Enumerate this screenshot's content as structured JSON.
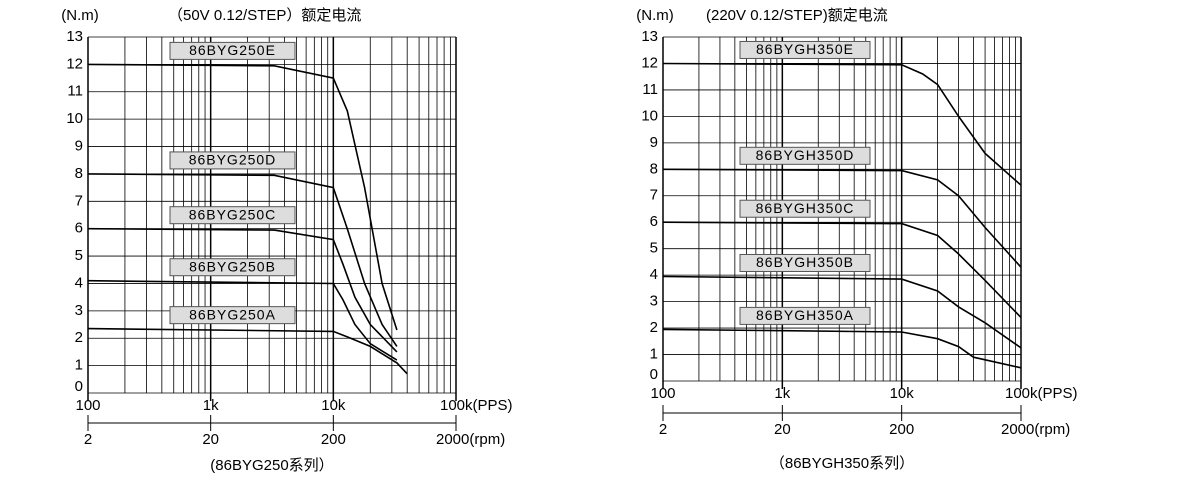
{
  "chart_data": [
    {
      "type": "line",
      "ylabel": "(N.m)",
      "title": "（50V 0.12/STEP）额定电流",
      "caption": "(86BYG250系列）",
      "xscale": "log",
      "grid": true,
      "xlim": [
        100,
        100000
      ],
      "ylim": [
        0,
        13
      ],
      "xticks": [
        100,
        {
          "value": 1000,
          "label": "1k"
        },
        {
          "value": 10000,
          "label": "10k"
        },
        {
          "value": 100000,
          "label": "100k(PPS)"
        }
      ],
      "yticks": [
        0,
        1,
        2,
        3,
        4,
        5,
        6,
        7,
        8,
        9,
        10,
        11,
        12,
        13
      ],
      "x2lim": [
        2,
        2000
      ],
      "x2ticks": [
        2,
        20,
        200,
        {
          "value": 2000,
          "label": "2000(rpm)"
        }
      ],
      "series": [
        {
          "name": "86BYG250E",
          "color": "#000000",
          "x": [
            100,
            3300,
            10000,
            13000,
            18000,
            25000,
            33000
          ],
          "values": [
            12,
            11.95,
            11.5,
            10.3,
            7.5,
            4,
            2.3
          ]
        },
        {
          "name": "86BYG250D",
          "color": "#000000",
          "x": [
            100,
            3300,
            10000,
            13000,
            18000,
            25000,
            33000
          ],
          "values": [
            8,
            7.95,
            7.5,
            6,
            4,
            2.5,
            1.7
          ]
        },
        {
          "name": "86BYG250C",
          "color": "#000000",
          "x": [
            100,
            3300,
            10000,
            12000,
            15000,
            20000,
            33000
          ],
          "values": [
            6,
            5.95,
            5.6,
            4.7,
            3.5,
            2.5,
            1.5
          ]
        },
        {
          "name": "86BYG250B",
          "color": "#000000",
          "x": [
            100,
            10000,
            12000,
            15000,
            20000,
            33000
          ],
          "values": [
            4.1,
            4,
            3.4,
            2.5,
            1.8,
            1.2
          ]
        },
        {
          "name": "86BYG250A",
          "color": "#000000",
          "x": [
            100,
            10000,
            13000,
            20000,
            33000,
            40000
          ],
          "values": [
            2.35,
            2.25,
            2.05,
            1.7,
            1.1,
            0.7
          ]
        }
      ]
    },
    {
      "type": "line",
      "ylabel": "(N.m)",
      "title": "(220V  0.12/STEP)额定电流",
      "caption": "（86BYGH350系列）",
      "xscale": "log",
      "grid": true,
      "xlim": [
        100,
        100000
      ],
      "ylim": [
        0,
        13
      ],
      "xticks": [
        100,
        {
          "value": 1000,
          "label": "1k"
        },
        {
          "value": 10000,
          "label": "10k"
        },
        {
          "value": 100000,
          "label": "100k(PPS)"
        }
      ],
      "yticks": [
        0,
        1,
        2,
        3,
        4,
        5,
        6,
        7,
        8,
        9,
        10,
        11,
        12,
        13
      ],
      "x2lim": [
        2,
        2000
      ],
      "x2ticks": [
        2,
        20,
        200,
        {
          "value": 2000,
          "label": "2000(rpm)"
        }
      ],
      "series": [
        {
          "name": "86BYGH350E",
          "color": "#000000",
          "x": [
            100,
            10000,
            15000,
            20000,
            30000,
            50000,
            100000
          ],
          "values": [
            12,
            11.95,
            11.6,
            11.2,
            10,
            8.6,
            7.4
          ]
        },
        {
          "name": "86BYGH350D",
          "color": "#000000",
          "x": [
            100,
            10000,
            20000,
            30000,
            50000,
            100000
          ],
          "values": [
            8,
            7.95,
            7.6,
            7,
            5.8,
            4.3
          ]
        },
        {
          "name": "86BYGH350C",
          "color": "#000000",
          "x": [
            100,
            10000,
            20000,
            30000,
            50000,
            100000
          ],
          "values": [
            6,
            5.95,
            5.5,
            4.8,
            3.8,
            2.4
          ]
        },
        {
          "name": "86BYGH350B",
          "color": "#000000",
          "x": [
            100,
            10000,
            20000,
            30000,
            50000,
            100000
          ],
          "values": [
            3.95,
            3.85,
            3.4,
            2.8,
            2.2,
            1.25
          ]
        },
        {
          "name": "86BYGH350A",
          "color": "#000000",
          "x": [
            100,
            10000,
            20000,
            30000,
            40000,
            100000
          ],
          "values": [
            1.95,
            1.85,
            1.6,
            1.3,
            0.9,
            0.5
          ]
        }
      ]
    }
  ]
}
